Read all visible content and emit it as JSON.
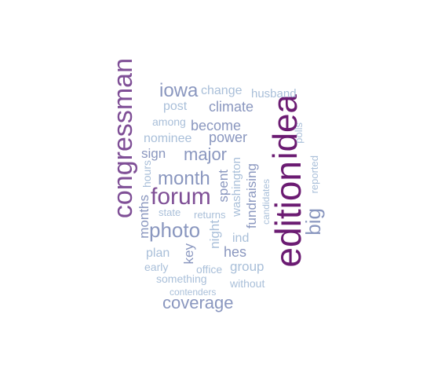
{
  "palette": {
    "darkest": "#6b1b72",
    "dark": "#7f4f96",
    "mid": "#8a97bf",
    "light": "#a9bfd9"
  },
  "words": {
    "congressman": "congressman",
    "edition": "edition",
    "idea": "idea",
    "forum": "forum",
    "photo": "photo",
    "iowa": "iowa",
    "big": "big",
    "month": "month",
    "major": "major",
    "coverage": "coverage",
    "climate": "climate",
    "become": "become",
    "power": "power",
    "change": "change",
    "husband": "husband",
    "post": "post",
    "among": "among",
    "nominee": "nominee",
    "sign": "sign",
    "hours": "hours",
    "months": "months",
    "spent": "spent",
    "washington": "washington",
    "fundraising": "fundraising",
    "polls": "polls",
    "reported": "reported",
    "candidates": "candidates",
    "state": "state",
    "returns": "returns",
    "night": "night",
    "ind": "ind",
    "key": "key",
    "hes": "hes",
    "plan": "plan",
    "group": "group",
    "early": "early",
    "office": "office",
    "something": "something",
    "without": "without",
    "contenders": "contenders"
  }
}
